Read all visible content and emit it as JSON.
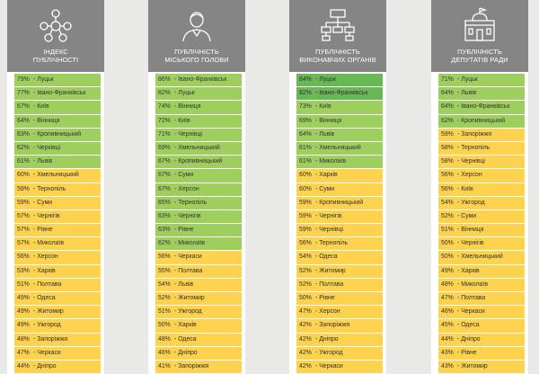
{
  "colors": {
    "header_bg": "#858585",
    "dark_green": "#68b855",
    "green": "#9ecf5e",
    "yellow": "#fcd24e",
    "page_bg": "#e9e9e7"
  },
  "chart_data": [
    {
      "type": "table",
      "title_lines": [
        "ІНДЕКС",
        "ПУБЛІЧНОСТІ"
      ],
      "icon": "people-network-icon",
      "rows": [
        {
          "value": "79%",
          "city": "Луцьк",
          "color": "green"
        },
        {
          "value": "77%",
          "city": "Івано-Франківськ",
          "color": "green"
        },
        {
          "value": "67%",
          "city": "Київ",
          "color": "green"
        },
        {
          "value": "64%",
          "city": "Вінниця",
          "color": "green"
        },
        {
          "value": "63%",
          "city": "Кропивницький",
          "color": "green"
        },
        {
          "value": "62%",
          "city": "Черківці",
          "color": "green"
        },
        {
          "value": "61%",
          "city": "Львів",
          "color": "green"
        },
        {
          "value": "60%",
          "city": "Хмельницький",
          "color": "yellow"
        },
        {
          "value": "59%",
          "city": "Тернопіль",
          "color": "yellow"
        },
        {
          "value": "59%",
          "city": "Суми",
          "color": "yellow"
        },
        {
          "value": "57%",
          "city": "Чернігів",
          "color": "yellow"
        },
        {
          "value": "57%",
          "city": "Рівне",
          "color": "yellow"
        },
        {
          "value": "57%",
          "city": "Миколаїв",
          "color": "yellow"
        },
        {
          "value": "56%",
          "city": "Херсон",
          "color": "yellow"
        },
        {
          "value": "53%",
          "city": "Харків",
          "color": "yellow"
        },
        {
          "value": "51%",
          "city": "Полтава",
          "color": "yellow"
        },
        {
          "value": "49%",
          "city": "Одеса",
          "color": "yellow"
        },
        {
          "value": "49%",
          "city": "Житомир",
          "color": "yellow"
        },
        {
          "value": "49%",
          "city": "Ужгород",
          "color": "yellow"
        },
        {
          "value": "48%",
          "city": "Запоріжжя",
          "color": "yellow"
        },
        {
          "value": "47%",
          "city": "Черкаси",
          "color": "yellow"
        },
        {
          "value": "44%",
          "city": "Дніпро",
          "color": "yellow"
        }
      ]
    },
    {
      "type": "table",
      "title_lines": [
        "ПУБЛІЧНІСТЬ",
        "МІСЬКОГО ГОЛОВИ"
      ],
      "icon": "mayor-person-icon",
      "rows": [
        {
          "value": "86%",
          "city": "Івано-Франківськ",
          "color": "green"
        },
        {
          "value": "82%",
          "city": "Луцьк",
          "color": "green"
        },
        {
          "value": "74%",
          "city": "Вінниця",
          "color": "green"
        },
        {
          "value": "72%",
          "city": "Київ",
          "color": "green"
        },
        {
          "value": "71%",
          "city": "Чернівці",
          "color": "green"
        },
        {
          "value": "69%",
          "city": "Хмельницький",
          "color": "green"
        },
        {
          "value": "67%",
          "city": "Кропивницький",
          "color": "green"
        },
        {
          "value": "67%",
          "city": "Суми",
          "color": "green"
        },
        {
          "value": "67%",
          "city": "Херсон",
          "color": "green"
        },
        {
          "value": "65%",
          "city": "Тернопіль",
          "color": "green"
        },
        {
          "value": "63%",
          "city": "Чернігів",
          "color": "green"
        },
        {
          "value": "63%",
          "city": "Рівне",
          "color": "green"
        },
        {
          "value": "62%",
          "city": "Миколаїв",
          "color": "green"
        },
        {
          "value": "56%",
          "city": "Черкаси",
          "color": "yellow"
        },
        {
          "value": "55%",
          "city": "Полтава",
          "color": "yellow"
        },
        {
          "value": "54%",
          "city": "Львів",
          "color": "yellow"
        },
        {
          "value": "52%",
          "city": "Житомир",
          "color": "yellow"
        },
        {
          "value": "51%",
          "city": "Ужгород",
          "color": "yellow"
        },
        {
          "value": "50%",
          "city": "Харків",
          "color": "yellow"
        },
        {
          "value": "48%",
          "city": "Одеса",
          "color": "yellow"
        },
        {
          "value": "46%",
          "city": "Дніпро",
          "color": "yellow"
        },
        {
          "value": "41%",
          "city": "Запоріжжя",
          "color": "yellow"
        }
      ]
    },
    {
      "type": "table",
      "title_lines": [
        "ПУБЛІЧНІСТЬ",
        "ВИКОНАВЧИХ ОРГАНІВ"
      ],
      "icon": "org-chart-icon",
      "rows": [
        {
          "value": "84%",
          "city": "Луцьк",
          "color": "dark_green"
        },
        {
          "value": "82%",
          "city": "Івано-Франківськ",
          "color": "dark_green"
        },
        {
          "value": "73%",
          "city": "Київ",
          "color": "green"
        },
        {
          "value": "69%",
          "city": "Вінниця",
          "color": "green"
        },
        {
          "value": "64%",
          "city": "Львів",
          "color": "green"
        },
        {
          "value": "61%",
          "city": "Хмельницький",
          "color": "green"
        },
        {
          "value": "61%",
          "city": "Миколаїв",
          "color": "green"
        },
        {
          "value": "60%",
          "city": "Харків",
          "color": "yellow"
        },
        {
          "value": "60%",
          "city": "Суми",
          "color": "yellow"
        },
        {
          "value": "59%",
          "city": "Кропивницький",
          "color": "yellow"
        },
        {
          "value": "59%",
          "city": "Чернігів",
          "color": "yellow"
        },
        {
          "value": "59%",
          "city": "Чернівці",
          "color": "yellow"
        },
        {
          "value": "56%",
          "city": "Тернопіль",
          "color": "yellow"
        },
        {
          "value": "54%",
          "city": "Одеса",
          "color": "yellow"
        },
        {
          "value": "52%",
          "city": "Житомир",
          "color": "yellow"
        },
        {
          "value": "52%",
          "city": "Полтава",
          "color": "yellow"
        },
        {
          "value": "50%",
          "city": "Рівне",
          "color": "yellow"
        },
        {
          "value": "47%",
          "city": "Херсон",
          "color": "yellow"
        },
        {
          "value": "42%",
          "city": "Запоріжжя",
          "color": "yellow"
        },
        {
          "value": "42%",
          "city": "Дніпро",
          "color": "yellow"
        },
        {
          "value": "42%",
          "city": "Ужгород",
          "color": "yellow"
        },
        {
          "value": "42%",
          "city": "Черкаси",
          "color": "yellow"
        }
      ]
    },
    {
      "type": "table",
      "title_lines": [
        "ПУБЛІЧНІСТЬ",
        "ДЕПУТАТІВ РАДИ"
      ],
      "icon": "council-building-icon",
      "rows": [
        {
          "value": "71%",
          "city": "Луцьк",
          "color": "green"
        },
        {
          "value": "64%",
          "city": "Львів",
          "color": "green"
        },
        {
          "value": "64%",
          "city": "Івано-Франківськ",
          "color": "green"
        },
        {
          "value": "62%",
          "city": "Кропивницький",
          "color": "green"
        },
        {
          "value": "59%",
          "city": "Запоріжжя",
          "color": "yellow"
        },
        {
          "value": "58%",
          "city": "Тернопіль",
          "color": "yellow"
        },
        {
          "value": "58%",
          "city": "Чернівці",
          "color": "yellow"
        },
        {
          "value": "56%",
          "city": "Херсон",
          "color": "yellow"
        },
        {
          "value": "56%",
          "city": "Київ",
          "color": "yellow"
        },
        {
          "value": "54%",
          "city": "Ужгород",
          "color": "yellow"
        },
        {
          "value": "52%",
          "city": "Суми",
          "color": "yellow"
        },
        {
          "value": "51%",
          "city": "Вінниця",
          "color": "yellow"
        },
        {
          "value": "50%",
          "city": "Чернігів",
          "color": "yellow"
        },
        {
          "value": "50%",
          "city": "Хмельницький",
          "color": "yellow"
        },
        {
          "value": "49%",
          "city": "Харків",
          "color": "yellow"
        },
        {
          "value": "48%",
          "city": "Миколаїв",
          "color": "yellow"
        },
        {
          "value": "47%",
          "city": "Полтава",
          "color": "yellow"
        },
        {
          "value": "46%",
          "city": "Черкаси",
          "color": "yellow"
        },
        {
          "value": "45%",
          "city": "Одеса",
          "color": "yellow"
        },
        {
          "value": "44%",
          "city": "Дніпро",
          "color": "yellow"
        },
        {
          "value": "43%",
          "city": "Рівне",
          "color": "yellow"
        },
        {
          "value": "43%",
          "city": "Житомир",
          "color": "yellow"
        }
      ]
    }
  ]
}
